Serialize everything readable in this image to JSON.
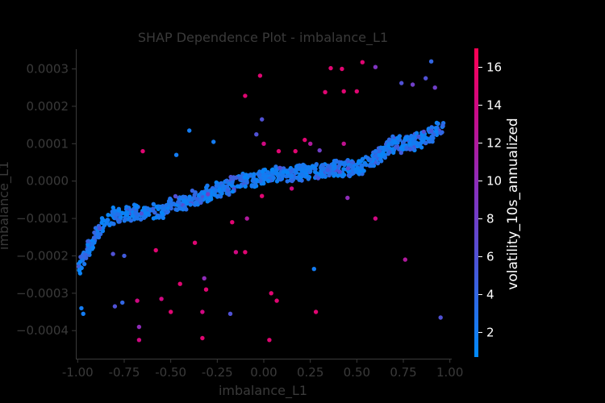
{
  "chart_data": {
    "type": "scatter",
    "title": "SHAP Dependence Plot - imbalance_L1",
    "xlabel": "imbalance_L1",
    "ylabel": "imbalance_L1",
    "xlim": [
      -1.01,
      1.01
    ],
    "ylim": [
      -0.000475,
      0.000355
    ],
    "xticks": [
      "-1.00",
      "-0.75",
      "-0.50",
      "-0.25",
      "0.00",
      "0.25",
      "0.50",
      "0.75",
      "1.00"
    ],
    "xtick_values": [
      -1.0,
      -0.75,
      -0.5,
      -0.25,
      0.0,
      0.25,
      0.5,
      0.75,
      1.0
    ],
    "yticks": [
      "−0.0004",
      "−0.0003",
      "−0.0002",
      "−0.0001",
      "0.0000",
      "0.0001",
      "0.0002",
      "0.0003"
    ],
    "ytick_values": [
      -0.0004,
      -0.0003,
      -0.0002,
      -0.0001,
      0.0,
      0.0001,
      0.0002,
      0.0003
    ],
    "colorbar": {
      "label": "volatility_10s_annualized",
      "range": [
        0.7,
        17
      ],
      "ticks": [
        "2",
        "4",
        "6",
        "8",
        "10",
        "12",
        "14",
        "16"
      ],
      "tick_values": [
        2,
        4,
        6,
        8,
        10,
        12,
        14,
        16
      ],
      "low_color": "#008afb",
      "high_color": "#ff0052"
    },
    "trend": {
      "x": [
        -1.0,
        -0.95,
        -0.9,
        -0.85,
        -0.8,
        -0.7,
        -0.55,
        -0.45,
        -0.35,
        -0.25,
        -0.15,
        -0.05,
        0.05,
        0.15,
        0.25,
        0.35,
        0.45,
        0.55,
        0.6,
        0.65,
        0.7,
        0.75,
        0.8,
        0.85,
        0.9,
        0.95
      ],
      "y": [
        -0.00024,
        -0.00019,
        -0.00014,
        -0.000105,
        -9e-05,
        -8.5e-05,
        -8e-05,
        -6e-05,
        -4.5e-05,
        -2.5e-05,
        -5e-06,
        5e-06,
        1.5e-05,
        2e-05,
        2.5e-05,
        3e-05,
        3.5e-05,
        4.5e-05,
        6e-05,
        8e-05,
        9.75e-05,
        0.0001,
        0.000105,
        0.00011,
        0.000125,
        0.00014
      ]
    },
    "highlighted_points": [
      {
        "x": -0.98,
        "y": -0.00034,
        "c": 2
      },
      {
        "x": -0.97,
        "y": -0.000355,
        "c": 2
      },
      {
        "x": -0.8,
        "y": -0.000335,
        "c": 6
      },
      {
        "x": -0.76,
        "y": -0.000325,
        "c": 4
      },
      {
        "x": -0.68,
        "y": -0.00032,
        "c": 14
      },
      {
        "x": -0.67,
        "y": -0.00039,
        "c": 10
      },
      {
        "x": -0.67,
        "y": -0.000425,
        "c": 14
      },
      {
        "x": -0.55,
        "y": -0.000315,
        "c": 14
      },
      {
        "x": -0.5,
        "y": -0.00035,
        "c": 15
      },
      {
        "x": -0.45,
        "y": -0.000275,
        "c": 15
      },
      {
        "x": -0.33,
        "y": -0.00035,
        "c": 14
      },
      {
        "x": -0.33,
        "y": -0.00042,
        "c": 15
      },
      {
        "x": -0.32,
        "y": -0.00026,
        "c": 10
      },
      {
        "x": -0.31,
        "y": -0.00029,
        "c": 15
      },
      {
        "x": -0.18,
        "y": -0.000355,
        "c": 6
      },
      {
        "x": 0.03,
        "y": -0.000425,
        "c": 15
      },
      {
        "x": 0.04,
        "y": -0.0003,
        "c": 15
      },
      {
        "x": 0.07,
        "y": -0.00032,
        "c": 15
      },
      {
        "x": 0.28,
        "y": -0.00035,
        "c": 15
      },
      {
        "x": 0.27,
        "y": -0.000235,
        "c": 2
      },
      {
        "x": 0.76,
        "y": -0.00021,
        "c": 12
      },
      {
        "x": 0.95,
        "y": -0.000365,
        "c": 6
      },
      {
        "x": -0.58,
        "y": -0.000185,
        "c": 15
      },
      {
        "x": -0.37,
        "y": -0.000165,
        "c": 15
      },
      {
        "x": -0.15,
        "y": -0.00019,
        "c": 14
      },
      {
        "x": -0.1,
        "y": -0.00019,
        "c": 15
      },
      {
        "x": -0.17,
        "y": -0.00011,
        "c": 15
      },
      {
        "x": -0.09,
        "y": -0.0001,
        "c": 12
      },
      {
        "x": -0.01,
        "y": -4e-05,
        "c": 15
      },
      {
        "x": -0.3,
        "y": -3.5e-05,
        "c": 8
      },
      {
        "x": -0.81,
        "y": -0.000195,
        "c": 6
      },
      {
        "x": -0.75,
        "y": -0.0002,
        "c": 5
      },
      {
        "x": -0.65,
        "y": 8e-05,
        "c": 15
      },
      {
        "x": -0.47,
        "y": 7e-05,
        "c": 2
      },
      {
        "x": -0.4,
        "y": 0.000135,
        "c": 2
      },
      {
        "x": -0.27,
        "y": 0.000105,
        "c": 2
      },
      {
        "x": -0.1,
        "y": 0.000228,
        "c": 15
      },
      {
        "x": -0.04,
        "y": 0.000125,
        "c": 6
      },
      {
        "x": -0.01,
        "y": 0.000165,
        "c": 6
      },
      {
        "x": 0.0,
        "y": 0.0001,
        "c": 14
      },
      {
        "x": -0.02,
        "y": 0.000282,
        "c": 15
      },
      {
        "x": 0.08,
        "y": 8e-05,
        "c": 15
      },
      {
        "x": 0.17,
        "y": 8e-05,
        "c": 15
      },
      {
        "x": 0.22,
        "y": 0.00011,
        "c": 15
      },
      {
        "x": 0.33,
        "y": 0.000238,
        "c": 15
      },
      {
        "x": 0.36,
        "y": 0.000302,
        "c": 15
      },
      {
        "x": 0.42,
        "y": 0.0003,
        "c": 15
      },
      {
        "x": 0.43,
        "y": 0.00024,
        "c": 15
      },
      {
        "x": 0.5,
        "y": 0.00024,
        "c": 15
      },
      {
        "x": 0.53,
        "y": 0.000318,
        "c": 15
      },
      {
        "x": 0.6,
        "y": 0.000305,
        "c": 9
      },
      {
        "x": 0.74,
        "y": 0.000262,
        "c": 6
      },
      {
        "x": 0.8,
        "y": 0.000258,
        "c": 8
      },
      {
        "x": 0.87,
        "y": 0.000275,
        "c": 6
      },
      {
        "x": 0.9,
        "y": 0.00032,
        "c": 4
      },
      {
        "x": 0.92,
        "y": 0.00025,
        "c": 8
      },
      {
        "x": 0.25,
        "y": 0.0001,
        "c": 12
      },
      {
        "x": 0.43,
        "y": 0.0001,
        "c": 13
      },
      {
        "x": 0.3,
        "y": 8.2e-05,
        "c": 8
      },
      {
        "x": 0.45,
        "y": -4.5e-05,
        "c": 10
      },
      {
        "x": 0.15,
        "y": -2e-05,
        "c": 14
      },
      {
        "x": 0.6,
        "y": -0.0001,
        "c": 14
      }
    ]
  }
}
